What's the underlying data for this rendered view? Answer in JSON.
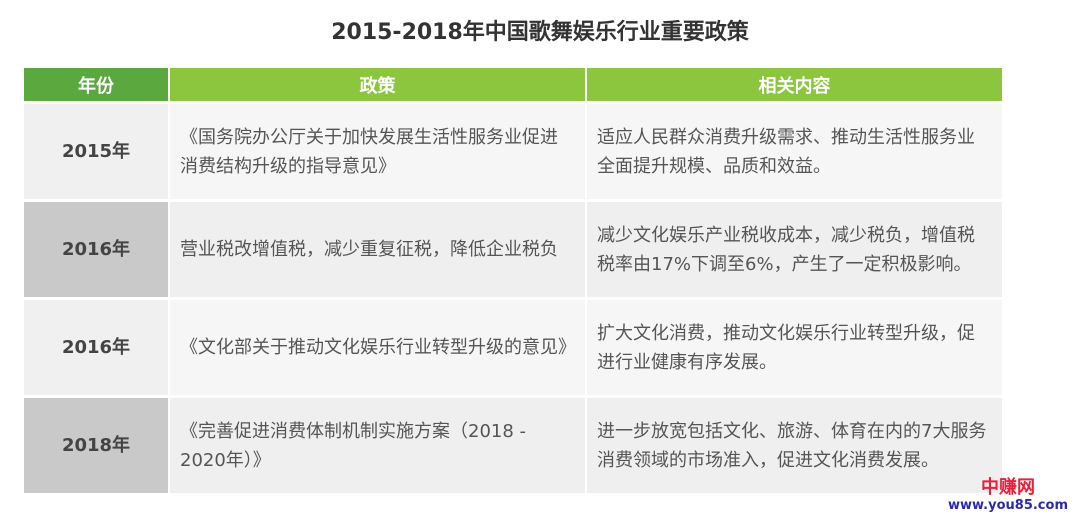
{
  "title": "2015-2018年中国歌舞娱乐行业重要政策",
  "headers": [
    "年份",
    "政策",
    "相关内容"
  ],
  "rows": [
    {
      "year": "2015年",
      "policy": "《国务院办公厅关于加快发展生活性服务业促进消费结构升级的指导意见》",
      "content": "适应人民群众消费升级需求、推动生活性服务业全面提升规模、品质和效益。"
    },
    {
      "year": "2016年",
      "policy": "营业税改增值税，减少重复征税，降低企业税负",
      "content": "减少文化娱乐产业税收成本，减少税负，增值税税率由17%下调至6%，产生了一定积极影响。"
    },
    {
      "year": "2016年",
      "policy": "《文化部关于推动文化娱乐行业转型升级的意见》",
      "content": "扩大文化消费，推动文化娱乐行业转型升级，促进行业健康有序发展。"
    },
    {
      "year": "2018年",
      "policy": "《完善促进消费体制机制实施方案（2018 - 2020年）》",
      "content": "进一步放宽包括文化、旅游、体育在内的7大服务消费领域的市场准入，促进文化消费发展。"
    }
  ],
  "watermark": {
    "name": "中赚网",
    "url": "www.you85.com"
  },
  "colors": {
    "header_dark": "#5ba83f",
    "header": "#8cc63f"
  }
}
